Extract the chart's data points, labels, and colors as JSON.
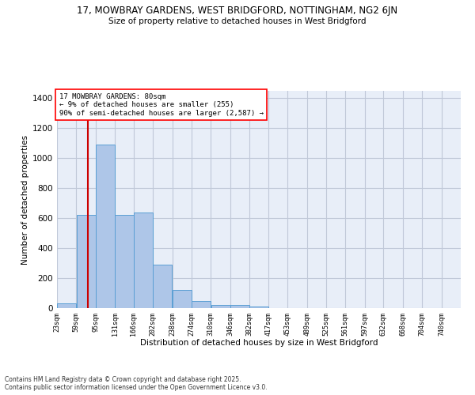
{
  "title1": "17, MOWBRAY GARDENS, WEST BRIDGFORD, NOTTINGHAM, NG2 6JN",
  "title2": "Size of property relative to detached houses in West Bridgford",
  "xlabel": "Distribution of detached houses by size in West Bridgford",
  "ylabel": "Number of detached properties",
  "bar_left_edges": [
    23,
    59,
    95,
    131,
    166,
    202,
    238,
    274,
    310,
    346,
    382,
    417,
    453,
    489,
    525,
    561,
    597,
    632,
    668,
    704
  ],
  "bar_widths": [
    36,
    36,
    36,
    35,
    36,
    36,
    36,
    36,
    36,
    36,
    35,
    36,
    36,
    36,
    36,
    36,
    35,
    36,
    36,
    36
  ],
  "bar_heights": [
    30,
    620,
    1090,
    620,
    640,
    290,
    120,
    50,
    20,
    20,
    10,
    0,
    0,
    0,
    0,
    0,
    0,
    0,
    0,
    0
  ],
  "bar_color": "#aec6e8",
  "bar_edge_color": "#5a9fd4",
  "tick_labels": [
    "23sqm",
    "59sqm",
    "95sqm",
    "131sqm",
    "166sqm",
    "202sqm",
    "238sqm",
    "274sqm",
    "310sqm",
    "346sqm",
    "382sqm",
    "417sqm",
    "453sqm",
    "489sqm",
    "525sqm",
    "561sqm",
    "597sqm",
    "632sqm",
    "668sqm",
    "704sqm",
    "740sqm"
  ],
  "property_size": 80,
  "annotation_line1": "17 MOWBRAY GARDENS: 80sqm",
  "annotation_line2": "← 9% of detached houses are smaller (255)",
  "annotation_line3": "90% of semi-detached houses are larger (2,587) →",
  "vline_color": "#cc0000",
  "ylim": [
    0,
    1450
  ],
  "xlim": [
    23,
    776
  ],
  "grid_color": "#c0c8d8",
  "bg_color": "#e8eef8",
  "footer1": "Contains HM Land Registry data © Crown copyright and database right 2025.",
  "footer2": "Contains public sector information licensed under the Open Government Licence v3.0."
}
